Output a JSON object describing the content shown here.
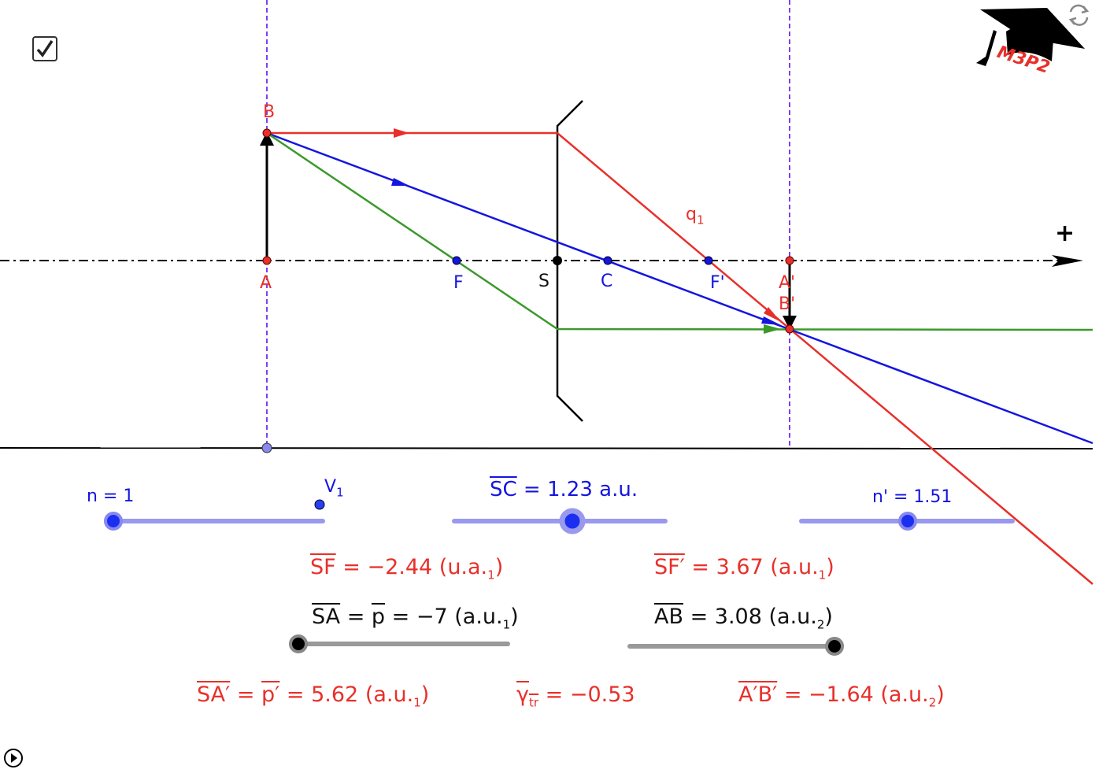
{
  "checkbox": {
    "checked": true,
    "icon": "checkmark-icon"
  },
  "logo": {
    "text": "M3P2",
    "icon": "graduation-cap-icon"
  },
  "reset_icon": "refresh-icon",
  "play_icon": "play-circle-icon",
  "axis": {
    "plus_label": "+"
  },
  "colors": {
    "red": "#e8302a",
    "blue": "#1515e0",
    "green": "#3a9a2a",
    "purple": "#7b3ff0",
    "slider_blue": "#9999ee",
    "slider_gray": "#999999"
  },
  "points": {
    "A": "A",
    "B": "B",
    "F": "F",
    "S": "S",
    "C": "C",
    "Fp": "F'",
    "Ap": "A'",
    "Bp": "B'",
    "q1": "q",
    "q1_sub": "1",
    "V1": "V",
    "V1_sub": "1"
  },
  "sliders": {
    "n": {
      "label": "n = 1",
      "value": 1
    },
    "SC": {
      "name": "SC",
      "text": " = 1.23 a.u.",
      "value": 1.23
    },
    "np": {
      "label": "n' = 1.51",
      "value": 1.51
    },
    "SA": {
      "name": "SA",
      "eq": " = ",
      "p": "p",
      "text": " = −7 (a.u.",
      "sub": "1",
      "close": ")",
      "value": -7
    },
    "AB": {
      "name": "AB",
      "text": " =  3.08 (a.u.",
      "sub": "2",
      "close": ")",
      "value": 3.08
    }
  },
  "results": {
    "SF": {
      "name": "SF",
      "text": " = −2.44 (u.a.",
      "sub": "1",
      "close": ")"
    },
    "SFp": {
      "name": "SF′",
      "text": " = 3.67 (a.u.",
      "sub": "1",
      "close": ")"
    },
    "SAp": {
      "name": "SA′",
      "eq": " = ",
      "p": "p′",
      "text": " = 5.62 (a.u.",
      "sub": "1",
      "close": ")"
    },
    "gamma": {
      "name": "γ",
      "sub": "tr",
      "text": " = −0.53"
    },
    "ApBp": {
      "name": "A′B′",
      "text": " = −1.64 (a.u.",
      "sub": "2",
      "close": ")"
    }
  }
}
